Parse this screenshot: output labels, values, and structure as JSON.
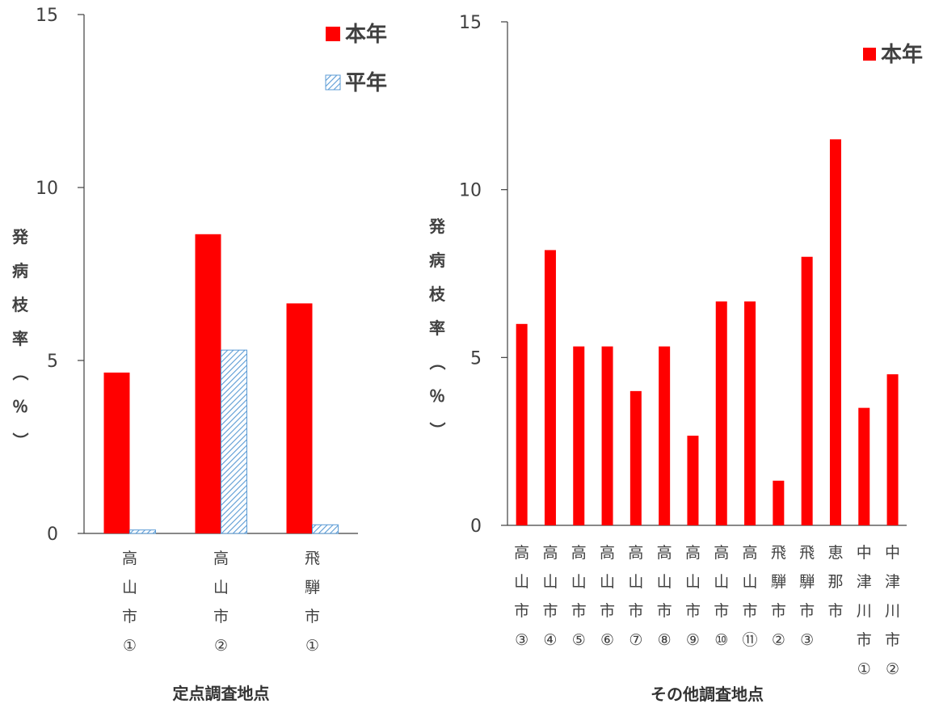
{
  "chart_data": [
    {
      "type": "bar",
      "xlabel": "定点調査地点",
      "ylabel": "発病枝率（％）",
      "ylim": [
        0,
        15
      ],
      "yticks": [
        "0",
        "5",
        "10",
        "15"
      ],
      "grid": false,
      "legend_position": "top-right",
      "categories": [
        "高山市①",
        "高山市②",
        "飛騨市①"
      ],
      "series": [
        {
          "name": "本年",
          "color": "#ff0000",
          "pattern": "solid",
          "values": [
            4.65,
            8.65,
            6.65
          ]
        },
        {
          "name": "平年",
          "color": "#5b9bd5",
          "pattern": "hatched",
          "values": [
            0.1,
            5.3,
            0.25
          ]
        }
      ]
    },
    {
      "type": "bar",
      "xlabel": "その他調査地点",
      "ylabel": "発病枝率（％）",
      "ylim": [
        0,
        15
      ],
      "yticks": [
        "0",
        "5",
        "10",
        "15"
      ],
      "grid": false,
      "legend_position": "top-right",
      "categories": [
        "高山市③",
        "高山市④",
        "高山市⑤",
        "高山市⑥",
        "高山市⑦",
        "高山市⑧",
        "高山市⑨",
        "高山市⑩",
        "高山市⑪",
        "飛騨市②",
        "飛騨市③",
        "恵那市",
        "中津川市①",
        "中津川市②"
      ],
      "series": [
        {
          "name": "本年",
          "color": "#ff0000",
          "pattern": "solid",
          "values": [
            6.0,
            8.2,
            5.33,
            5.33,
            4.0,
            5.33,
            2.67,
            6.67,
            6.67,
            1.33,
            8.0,
            11.5,
            3.5,
            4.5
          ]
        }
      ]
    }
  ]
}
